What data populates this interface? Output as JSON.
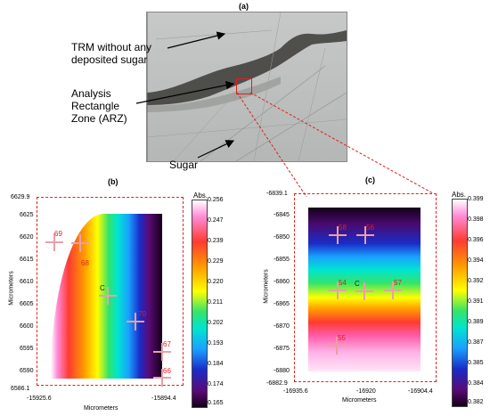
{
  "panels": {
    "a": "(a)",
    "b": "(b)",
    "c": "(c)"
  },
  "annotations": {
    "trm": [
      "TRM without any",
      "deposited sugar"
    ],
    "arz": [
      "Analysis",
      "Rectangle",
      "Zone (ARZ)"
    ],
    "sugar": "Sugar"
  },
  "colors": {
    "dashed_outline": "#e0201c",
    "point_marker": "#e8a0a8",
    "point_label": "#e0201c"
  },
  "map_b": {
    "y_axis_label": "Micrometers",
    "x_axis_label": "Micrometers",
    "y_top": "6629.9",
    "y_bottom": "6586.1",
    "x_left": "-15925.6",
    "x_right": "-15894.4",
    "y_ticks": [
      "6625",
      "6620",
      "6615",
      "6610",
      "6605",
      "6600",
      "6595",
      "6590"
    ],
    "points": [
      {
        "id": "p69",
        "label": "69"
      },
      {
        "id": "p68",
        "label": "68"
      },
      {
        "id": "pC",
        "label": "C"
      },
      {
        "id": "p70",
        "label": "70"
      },
      {
        "id": "p67",
        "label": "67"
      },
      {
        "id": "p66",
        "label": "66"
      }
    ],
    "colorbar": {
      "title": "Abs.",
      "ticks": [
        "0.256",
        "0.247",
        "0.239",
        "0.229",
        "0.220",
        "0.211",
        "0.202",
        "0.193",
        "0.184",
        "0.174",
        "0.165"
      ]
    }
  },
  "map_c": {
    "y_axis_label": "Micrometers",
    "x_axis_label": "Micrometers",
    "y_top": "-6839.1",
    "y_bottom": "-6882.9",
    "x_left": "-16935.6",
    "x_mid": "-16920",
    "x_right": "-16904.4",
    "y_ticks": [
      "-6845",
      "-6850",
      "-6855",
      "-6860",
      "-6865",
      "-6870",
      "-6875",
      "-6880"
    ],
    "points": [
      {
        "id": "p58",
        "label": "58"
      },
      {
        "id": "p56",
        "label": "56"
      },
      {
        "id": "p54",
        "label": "54"
      },
      {
        "id": "pC",
        "label": "C"
      },
      {
        "id": "p57",
        "label": "57"
      },
      {
        "id": "p55",
        "label": "55"
      }
    ],
    "colorbar": {
      "title": "Abs.",
      "ticks": [
        "0.399",
        "0.398",
        "0.396",
        "0.394",
        "0.392",
        "0.391",
        "0.389",
        "0.387",
        "0.385",
        "0.384",
        "0.382"
      ]
    }
  }
}
